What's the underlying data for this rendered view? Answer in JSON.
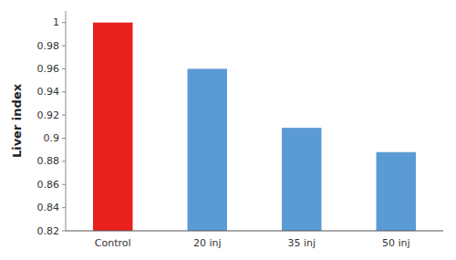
{
  "chart_data": {
    "type": "bar",
    "categories": [
      "Control",
      "20 inj",
      "35 inj",
      "50 inj"
    ],
    "values": [
      1.0,
      0.96,
      0.909,
      0.888
    ],
    "colors": [
      "#e8211d",
      "#5b9bd5",
      "#5b9bd5",
      "#5b9bd5"
    ],
    "ylabel": "Liver index",
    "ylim": [
      0.82,
      1.01
    ],
    "yticks": [
      0.82,
      0.84,
      0.86,
      0.88,
      0.9,
      0.92,
      0.94,
      0.96,
      0.98,
      1
    ],
    "grid": false
  }
}
